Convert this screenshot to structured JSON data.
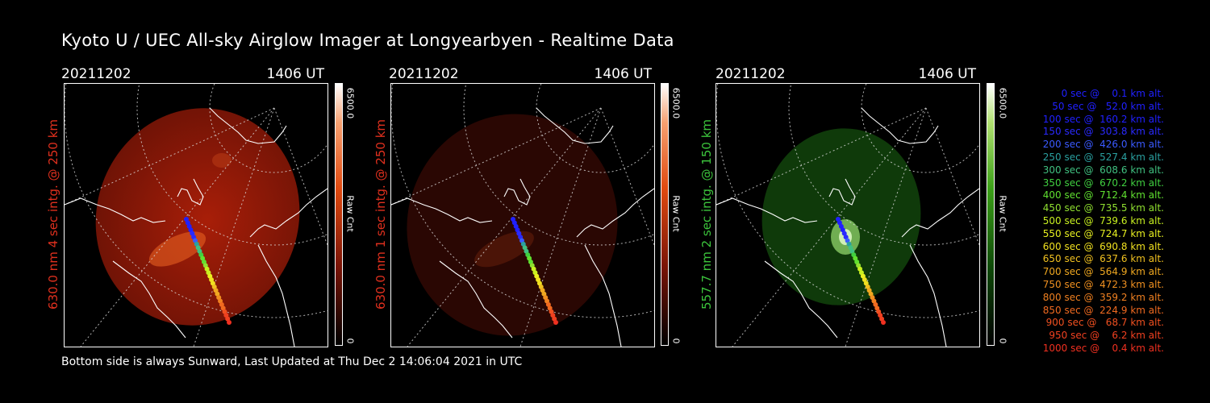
{
  "title": "Kyoto U / UEC All-sky Airglow Imager at Longyearbyen - Realtime Data",
  "panels": [
    {
      "date": "20211202",
      "time": "1406 UT",
      "side_label": "630.0 nm 4 sec intg. @ 250 km",
      "side_color": "#e0301e",
      "colorbar_max": "6500.0",
      "colorbar_label": "Raw Cnt"
    },
    {
      "date": "20211202",
      "time": "1406 UT",
      "side_label": "630.0 nm 1 sec intg. @ 250 km",
      "side_color": "#e0301e",
      "colorbar_max": "6500.0",
      "colorbar_label": "Raw Cnt"
    },
    {
      "date": "20211202",
      "time": "1406 UT",
      "side_label": "557.7 nm 2 sec intg. @ 150 km",
      "side_color": "#3cc43c",
      "colorbar_max": "6500.0",
      "colorbar_label": "Raw Cnt"
    }
  ],
  "footer": "Bottom side is always Sunward, Last Updated at Thu Dec  2 14:06:04 2021 in UTC",
  "legend": [
    {
      "text": "   0 sec @    0.1 km alt.",
      "color": "#2020ff"
    },
    {
      "text": "  50 sec @   52.0 km alt.",
      "color": "#2020ff"
    },
    {
      "text": " 100 sec @  160.2 km alt.",
      "color": "#2020ff"
    },
    {
      "text": " 150 sec @  303.8 km alt.",
      "color": "#2a2aff"
    },
    {
      "text": " 200 sec @  426.0 km alt.",
      "color": "#3a5aff"
    },
    {
      "text": " 250 sec @  527.4 km alt.",
      "color": "#2aa0a0"
    },
    {
      "text": " 300 sec @  608.6 km alt.",
      "color": "#40c080"
    },
    {
      "text": " 350 sec @  670.2 km alt.",
      "color": "#40d040"
    },
    {
      "text": " 400 sec @  712.4 km alt.",
      "color": "#60e030"
    },
    {
      "text": " 450 sec @  735.5 km alt.",
      "color": "#90e030"
    },
    {
      "text": " 500 sec @  739.6 km alt.",
      "color": "#c8f020"
    },
    {
      "text": " 550 sec @  724.7 km alt.",
      "color": "#e8f020"
    },
    {
      "text": " 600 sec @  690.8 km alt.",
      "color": "#f0e020"
    },
    {
      "text": " 650 sec @  637.6 km alt.",
      "color": "#f0c020"
    },
    {
      "text": " 700 sec @  564.9 km alt.",
      "color": "#f0a820"
    },
    {
      "text": " 750 sec @  472.3 km alt.",
      "color": "#f09020"
    },
    {
      "text": " 800 sec @  359.2 km alt.",
      "color": "#f08020"
    },
    {
      "text": " 850 sec @  224.9 km alt.",
      "color": "#f06a20"
    },
    {
      "text": " 900 sec @   68.7 km alt.",
      "color": "#f05020"
    },
    {
      "text": " 950 sec @    6.2 km alt.",
      "color": "#f04020"
    },
    {
      "text": "1000 sec @    0.4 km alt.",
      "color": "#f03020"
    }
  ]
}
